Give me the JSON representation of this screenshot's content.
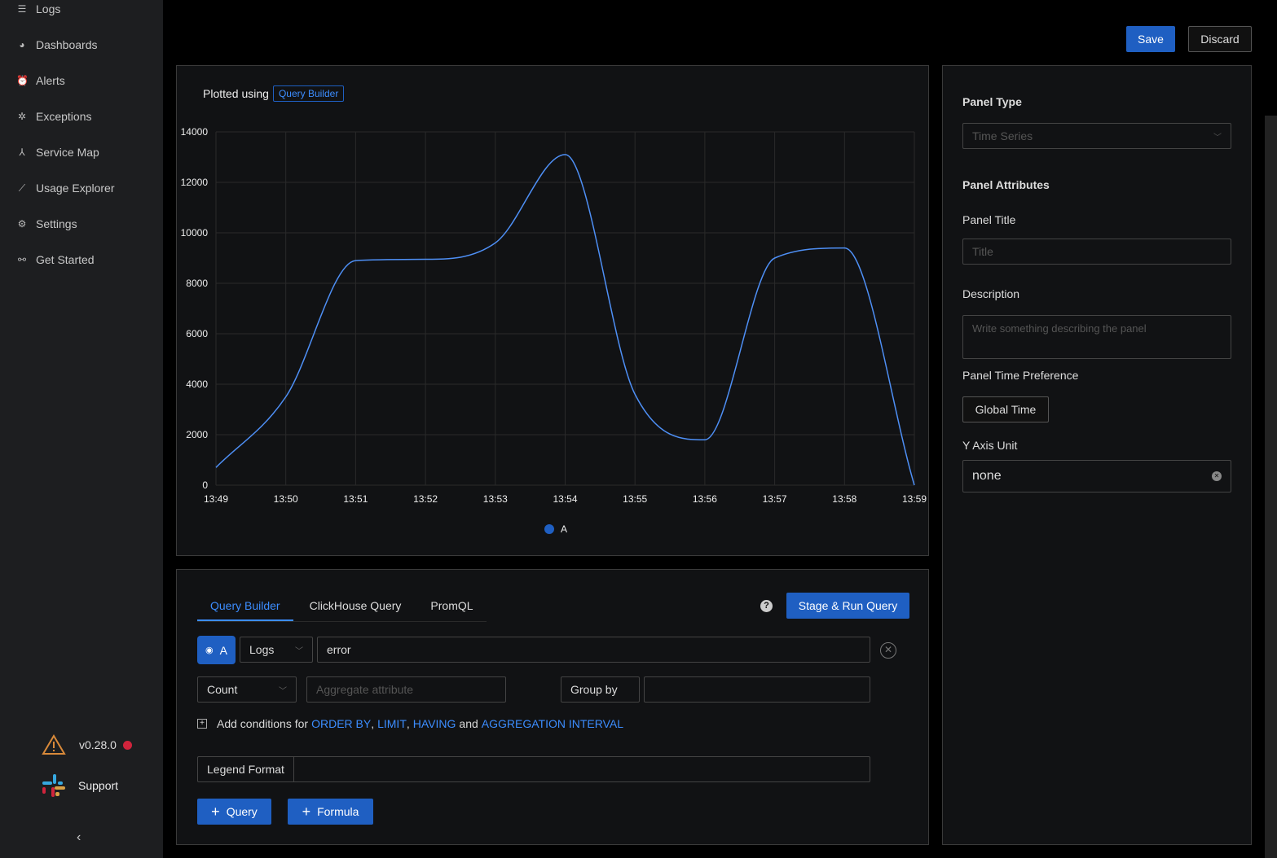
{
  "sidebar": {
    "items": [
      {
        "label": "Logs",
        "icon": "logs-icon"
      },
      {
        "label": "Dashboards",
        "icon": "dashboard-icon"
      },
      {
        "label": "Alerts",
        "icon": "alarm-icon"
      },
      {
        "label": "Exceptions",
        "icon": "bug-icon"
      },
      {
        "label": "Service Map",
        "icon": "deployment-icon"
      },
      {
        "label": "Usage Explorer",
        "icon": "line-chart-icon"
      },
      {
        "label": "Settings",
        "icon": "gear-icon"
      },
      {
        "label": "Get Started",
        "icon": "api-icon"
      }
    ],
    "version": "v0.28.0",
    "support": "Support"
  },
  "header": {
    "save": "Save",
    "discard": "Discard"
  },
  "chart_panel": {
    "plotted_using": "Plotted using",
    "source_tag": "Query Builder"
  },
  "chart_data": {
    "type": "line",
    "x": [
      "13:49",
      "13:50",
      "13:51",
      "13:52",
      "13:53",
      "13:54",
      "13:55",
      "13:56",
      "13:57",
      "13:58",
      "13:59"
    ],
    "series": [
      {
        "name": "A",
        "color": "#4e8ff5",
        "values": [
          700,
          3500,
          8900,
          8950,
          9600,
          13100,
          3600,
          1800,
          9000,
          9400,
          0
        ]
      }
    ],
    "yticks": [
      0,
      2000,
      4000,
      6000,
      8000,
      10000,
      12000,
      14000
    ],
    "ylim": [
      0,
      14000
    ],
    "grid": true,
    "legend": "bottom-center"
  },
  "query": {
    "tabs": [
      "Query Builder",
      "ClickHouse Query",
      "PromQL"
    ],
    "active_tab": 0,
    "run": "Stage & Run Query",
    "name": "A",
    "source": "Logs",
    "filter": "error",
    "aggregate": "Count",
    "aggregate_placeholder": "Aggregate attribute",
    "group_by": "Group by",
    "conditions": {
      "prefix": "Add conditions for",
      "order": "ORDER BY",
      "limit": "LIMIT",
      "having": "HAVING",
      "and": "and",
      "interval": "AGGREGATION INTERVAL",
      "sep": ","
    },
    "legend_format": "Legend Format",
    "add_query": "Query",
    "add_formula": "Formula"
  },
  "settings": {
    "panel_type_label": "Panel Type",
    "panel_type": "Time Series",
    "attributes": "Panel Attributes",
    "title_label": "Panel Title",
    "title_placeholder": "Title",
    "desc_label": "Description",
    "desc_placeholder": "Write something describing the  panel",
    "time_pref_label": "Panel Time Preference",
    "time_pref": "Global Time",
    "y_unit_label": "Y Axis Unit",
    "y_unit": "none"
  }
}
